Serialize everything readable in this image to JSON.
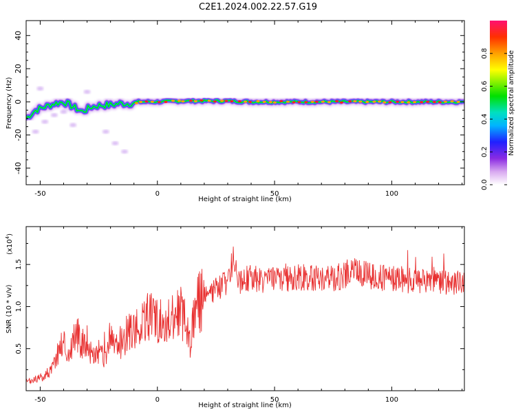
{
  "title": "C2E1.2024.002.22.57.G19",
  "chart_data": [
    {
      "type": "heatmap",
      "xlabel": "Height of straight line (km)",
      "ylabel": "Frequency (Hz)",
      "xlim": [
        -56,
        131
      ],
      "ylim": [
        -50,
        49
      ],
      "xticks": [
        -50,
        0,
        50,
        100
      ],
      "yticks": [
        -40,
        -20,
        0,
        20,
        40
      ],
      "xtick_labels": [
        "-50",
        "0",
        "50",
        "100"
      ],
      "ytick_labels": [
        "-40",
        "-20",
        "0",
        "20",
        "40"
      ],
      "grid": false,
      "ridge": {
        "description_points_x": [
          -56,
          -52,
          -48,
          -44,
          -40,
          -36,
          -32,
          -28,
          -24,
          -20,
          -16,
          -12,
          -8,
          -4,
          0,
          10,
          20,
          30,
          40,
          50,
          60,
          70,
          80,
          90,
          100,
          110,
          120,
          131
        ],
        "center_y": [
          -10,
          -5,
          -3,
          -1,
          0,
          -3,
          -6,
          -3,
          -2,
          -2,
          -1,
          -1,
          0,
          0,
          0,
          0.5,
          0.5,
          0.5,
          0,
          0,
          0,
          0,
          0,
          0,
          0,
          0,
          0,
          0
        ]
      },
      "colorbar": {
        "label": "Normalized spectral amplitude",
        "range": [
          0.0,
          1.0
        ],
        "ticks": [
          0.0,
          0.2,
          0.4,
          0.6,
          0.8
        ],
        "tick_labels": [
          "0.0",
          "0.2",
          "0.4",
          "0.6",
          "0.8"
        ]
      }
    },
    {
      "type": "line",
      "xlabel": "Height of straight line (km)",
      "ylabel": "SNR (10 * v/v)",
      "y_scale_label": "(x10",
      "y_scale_exp": "4",
      "xlim": [
        -56,
        131
      ],
      "ylim": [
        0,
        19500
      ],
      "xticks": [
        -50,
        0,
        50,
        100
      ],
      "yticks": [
        5000,
        10000,
        15000
      ],
      "xtick_labels": [
        "-50",
        "0",
        "50",
        "100"
      ],
      "ytick_labels": [
        "0.5",
        "1.0",
        "1.5"
      ],
      "grid": false,
      "series": [
        {
          "color": "#e83030",
          "x": [
            -56,
            -50,
            -45,
            -42,
            -40,
            -38,
            -35,
            -32,
            -30,
            -28,
            -25,
            -22,
            -20,
            -18,
            -15,
            -12,
            -10,
            -8,
            -5,
            -2,
            0,
            5,
            10,
            12,
            14,
            16,
            20,
            25,
            30,
            33,
            35,
            40,
            45,
            50,
            55,
            60,
            65,
            70,
            75,
            80,
            84,
            90,
            95,
            100,
            105,
            110,
            115,
            120,
            125,
            131
          ],
          "y": [
            1000,
            1500,
            2500,
            5000,
            6000,
            4000,
            7000,
            5500,
            6000,
            4000,
            4500,
            3500,
            7000,
            5000,
            6000,
            7000,
            7500,
            7000,
            8500,
            9000,
            8000,
            8500,
            9500,
            8000,
            6000,
            10000,
            11000,
            12000,
            13000,
            16000,
            13000,
            13500,
            13000,
            13500,
            13200,
            13500,
            13400,
            13500,
            13300,
            13800,
            14500,
            13600,
            13400,
            13300,
            13200,
            13000,
            13100,
            13000,
            12900,
            12800
          ]
        }
      ]
    }
  ]
}
